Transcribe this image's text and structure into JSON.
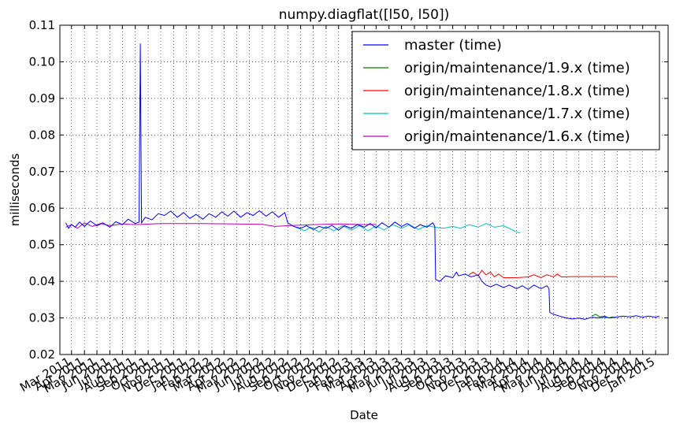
{
  "chart_data": {
    "type": "line",
    "title": "numpy.diagflat([l50, l50])",
    "xlabel": "Date",
    "ylabel": "milliseconds",
    "ylim": [
      0.02,
      0.11
    ],
    "xlim": [
      "2011-02-01",
      "2015-01-31"
    ],
    "grid": true,
    "legend_position": "top-right",
    "y_ticks": [
      "0.02",
      "0.03",
      "0.04",
      "0.05",
      "0.06",
      "0.07",
      "0.08",
      "0.09",
      "0.10",
      "0.11"
    ],
    "x_ticks": [
      {
        "date": "2011-03-01",
        "label": "Mar 2011"
      },
      {
        "date": "2011-04-01",
        "label": "Apr 2011"
      },
      {
        "date": "2011-05-01",
        "label": "May 2011"
      },
      {
        "date": "2011-06-01",
        "label": "Jun 2011"
      },
      {
        "date": "2011-07-01",
        "label": "Jul 2011"
      },
      {
        "date": "2011-08-01",
        "label": "Aug 2011"
      },
      {
        "date": "2011-09-01",
        "label": "Sep 2011"
      },
      {
        "date": "2011-10-01",
        "label": "Oct 2011"
      },
      {
        "date": "2011-11-01",
        "label": "Nov 2011"
      },
      {
        "date": "2011-12-01",
        "label": "Dec 2011"
      },
      {
        "date": "2012-01-01",
        "label": "Jan 2012"
      },
      {
        "date": "2012-02-01",
        "label": "Feb 2012"
      },
      {
        "date": "2012-03-01",
        "label": "Mar 2012"
      },
      {
        "date": "2012-04-01",
        "label": "Apr 2012"
      },
      {
        "date": "2012-05-01",
        "label": "May 2012"
      },
      {
        "date": "2012-06-01",
        "label": "Jun 2012"
      },
      {
        "date": "2012-07-01",
        "label": "Jul 2012"
      },
      {
        "date": "2012-08-01",
        "label": "Aug 2012"
      },
      {
        "date": "2012-09-01",
        "label": "Sep 2012"
      },
      {
        "date": "2012-10-01",
        "label": "Oct 2012"
      },
      {
        "date": "2012-11-01",
        "label": "Nov 2012"
      },
      {
        "date": "2012-12-01",
        "label": "Dec 2012"
      },
      {
        "date": "2013-01-01",
        "label": "Jan 2013"
      },
      {
        "date": "2013-02-01",
        "label": "Feb 2013"
      },
      {
        "date": "2013-03-01",
        "label": "Mar 2013"
      },
      {
        "date": "2013-04-01",
        "label": "Apr 2013"
      },
      {
        "date": "2013-05-01",
        "label": "May 2013"
      },
      {
        "date": "2013-06-01",
        "label": "Jun 2013"
      },
      {
        "date": "2013-07-01",
        "label": "Jul 2013"
      },
      {
        "date": "2013-08-01",
        "label": "Aug 2013"
      },
      {
        "date": "2013-09-01",
        "label": "Sep 2013"
      },
      {
        "date": "2013-10-01",
        "label": "Oct 2013"
      },
      {
        "date": "2013-11-01",
        "label": "Nov 2013"
      },
      {
        "date": "2013-12-01",
        "label": "Dec 2013"
      },
      {
        "date": "2014-01-01",
        "label": "Jan 2014"
      },
      {
        "date": "2014-02-01",
        "label": "Feb 2014"
      },
      {
        "date": "2014-03-01",
        "label": "Mar 2014"
      },
      {
        "date": "2014-04-01",
        "label": "Apr 2014"
      },
      {
        "date": "2014-05-01",
        "label": "May 2014"
      },
      {
        "date": "2014-06-01",
        "label": "Jun 2014"
      },
      {
        "date": "2014-07-01",
        "label": "Jul 2014"
      },
      {
        "date": "2014-08-01",
        "label": "Aug 2014"
      },
      {
        "date": "2014-09-01",
        "label": "Sep 2014"
      },
      {
        "date": "2014-10-01",
        "label": "Oct 2014"
      },
      {
        "date": "2014-11-01",
        "label": "Nov 2014"
      },
      {
        "date": "2014-12-01",
        "label": "Dec 2014"
      },
      {
        "date": "2015-01-01",
        "label": "Jan 2015"
      }
    ],
    "series": [
      {
        "name": "master (time)",
        "color": "#0000ff",
        "points": [
          [
            "2011-02-15",
            0.056
          ],
          [
            "2011-02-22",
            0.0545
          ],
          [
            "2011-03-01",
            0.0555
          ],
          [
            "2011-03-10",
            0.0548
          ],
          [
            "2011-03-20",
            0.0562
          ],
          [
            "2011-04-01",
            0.055
          ],
          [
            "2011-04-15",
            0.0565
          ],
          [
            "2011-05-01",
            0.0552
          ],
          [
            "2011-05-15",
            0.056
          ],
          [
            "2011-06-01",
            0.0548
          ],
          [
            "2011-06-15",
            0.0563
          ],
          [
            "2011-07-01",
            0.0555
          ],
          [
            "2011-07-15",
            0.057
          ],
          [
            "2011-08-01",
            0.0558
          ],
          [
            "2011-08-10",
            0.0562
          ],
          [
            "2011-08-13",
            0.105
          ],
          [
            "2011-08-16",
            0.056
          ],
          [
            "2011-08-25",
            0.0575
          ],
          [
            "2011-09-10",
            0.0568
          ],
          [
            "2011-09-25",
            0.0585
          ],
          [
            "2011-10-10",
            0.058
          ],
          [
            "2011-10-25",
            0.0592
          ],
          [
            "2011-11-10",
            0.0575
          ],
          [
            "2011-11-25",
            0.0588
          ],
          [
            "2011-12-10",
            0.0572
          ],
          [
            "2011-12-25",
            0.0583
          ],
          [
            "2012-01-10",
            0.057
          ],
          [
            "2012-01-25",
            0.0585
          ],
          [
            "2012-02-10",
            0.0575
          ],
          [
            "2012-02-25",
            0.059
          ],
          [
            "2012-03-10",
            0.0578
          ],
          [
            "2012-03-25",
            0.0592
          ],
          [
            "2012-04-10",
            0.0575
          ],
          [
            "2012-04-25",
            0.0588
          ],
          [
            "2012-05-10",
            0.058
          ],
          [
            "2012-05-25",
            0.0593
          ],
          [
            "2012-06-10",
            0.0578
          ],
          [
            "2012-06-25",
            0.059
          ],
          [
            "2012-07-10",
            0.0575
          ],
          [
            "2012-07-25",
            0.0588
          ],
          [
            "2012-08-01",
            0.056
          ],
          [
            "2012-08-15",
            0.055
          ],
          [
            "2012-09-01",
            0.0545
          ],
          [
            "2012-09-15",
            0.0552
          ],
          [
            "2012-10-01",
            0.0542
          ],
          [
            "2012-10-15",
            0.055
          ],
          [
            "2012-11-01",
            0.0545
          ],
          [
            "2012-11-15",
            0.0553
          ],
          [
            "2012-12-01",
            0.054
          ],
          [
            "2012-12-15",
            0.0552
          ],
          [
            "2013-01-01",
            0.0545
          ],
          [
            "2013-01-15",
            0.0555
          ],
          [
            "2013-02-01",
            0.0548
          ],
          [
            "2013-02-15",
            0.0558
          ],
          [
            "2013-03-01",
            0.0546
          ],
          [
            "2013-03-15",
            0.056
          ],
          [
            "2013-04-01",
            0.0548
          ],
          [
            "2013-04-15",
            0.0562
          ],
          [
            "2013-05-01",
            0.055
          ],
          [
            "2013-05-15",
            0.0558
          ],
          [
            "2013-06-01",
            0.0545
          ],
          [
            "2013-06-15",
            0.0555
          ],
          [
            "2013-07-01",
            0.0548
          ],
          [
            "2013-07-15",
            0.056
          ],
          [
            "2013-07-20",
            0.055
          ],
          [
            "2013-07-22",
            0.0405
          ],
          [
            "2013-08-01",
            0.04
          ],
          [
            "2013-08-15",
            0.0415
          ],
          [
            "2013-09-01",
            0.041
          ],
          [
            "2013-09-10",
            0.0425
          ],
          [
            "2013-09-15",
            0.0415
          ],
          [
            "2013-10-01",
            0.042
          ],
          [
            "2013-10-15",
            0.0412
          ],
          [
            "2013-11-01",
            0.0418
          ],
          [
            "2013-11-10",
            0.04
          ],
          [
            "2013-11-20",
            0.039
          ],
          [
            "2013-12-01",
            0.0385
          ],
          [
            "2013-12-15",
            0.0392
          ],
          [
            "2014-01-01",
            0.0383
          ],
          [
            "2014-01-15",
            0.039
          ],
          [
            "2014-02-01",
            0.038
          ],
          [
            "2014-02-15",
            0.0388
          ],
          [
            "2014-03-01",
            0.0378
          ],
          [
            "2014-03-15",
            0.039
          ],
          [
            "2014-04-01",
            0.038
          ],
          [
            "2014-04-15",
            0.0388
          ],
          [
            "2014-04-20",
            0.038
          ],
          [
            "2014-04-22",
            0.0315
          ],
          [
            "2014-05-01",
            0.031
          ],
          [
            "2014-05-15",
            0.0305
          ],
          [
            "2014-06-01",
            0.03
          ],
          [
            "2014-06-15",
            0.0297
          ],
          [
            "2014-07-01",
            0.03
          ],
          [
            "2014-07-15",
            0.0296
          ],
          [
            "2014-08-01",
            0.0302
          ],
          [
            "2014-08-15",
            0.03
          ],
          [
            "2014-09-01",
            0.0302
          ],
          [
            "2014-09-15",
            0.03
          ],
          [
            "2014-10-01",
            0.0303
          ],
          [
            "2014-10-15",
            0.0305
          ],
          [
            "2014-11-01",
            0.0303
          ],
          [
            "2014-11-15",
            0.0306
          ],
          [
            "2014-12-01",
            0.0302
          ],
          [
            "2014-12-15",
            0.0305
          ],
          [
            "2015-01-01",
            0.0302
          ],
          [
            "2015-01-10",
            0.0305
          ]
        ]
      },
      {
        "name": "origin/maintenance/1.9.x (time)",
        "color": "#008000",
        "points": [
          [
            "2014-08-01",
            0.0305
          ],
          [
            "2014-08-10",
            0.031
          ],
          [
            "2014-08-20",
            0.0303
          ],
          [
            "2014-09-01",
            0.0305
          ],
          [
            "2014-09-10",
            0.03
          ],
          [
            "2014-09-20",
            0.0303
          ],
          [
            "2014-09-25",
            0.03
          ]
        ]
      },
      {
        "name": "origin/maintenance/1.8.x (time)",
        "color": "#ff0000",
        "points": [
          [
            "2013-10-10",
            0.0418
          ],
          [
            "2013-10-20",
            0.0425
          ],
          [
            "2013-11-01",
            0.0415
          ],
          [
            "2013-11-10",
            0.043
          ],
          [
            "2013-11-20",
            0.0418
          ],
          [
            "2013-12-01",
            0.0425
          ],
          [
            "2013-12-10",
            0.0412
          ],
          [
            "2013-12-20",
            0.042
          ],
          [
            "2014-01-01",
            0.041
          ],
          [
            "2014-02-01",
            0.041
          ],
          [
            "2014-03-01",
            0.0412
          ],
          [
            "2014-03-15",
            0.0418
          ],
          [
            "2014-04-01",
            0.041
          ],
          [
            "2014-04-15",
            0.0418
          ],
          [
            "2014-05-01",
            0.0412
          ],
          [
            "2014-05-10",
            0.042
          ],
          [
            "2014-05-20",
            0.0412
          ],
          [
            "2014-06-15",
            0.0413
          ],
          [
            "2014-08-01",
            0.0413
          ],
          [
            "2014-10-01",
            0.0413
          ]
        ]
      },
      {
        "name": "origin/maintenance/1.7.x (time)",
        "color": "#00bfbf",
        "points": [
          [
            "2012-08-20",
            0.0548
          ],
          [
            "2012-09-10",
            0.0538
          ],
          [
            "2012-09-25",
            0.0548
          ],
          [
            "2012-10-15",
            0.0535
          ],
          [
            "2012-11-01",
            0.055
          ],
          [
            "2012-11-20",
            0.0538
          ],
          [
            "2012-12-10",
            0.0552
          ],
          [
            "2013-01-01",
            0.054
          ],
          [
            "2013-01-20",
            0.0552
          ],
          [
            "2013-02-10",
            0.0538
          ],
          [
            "2013-03-01",
            0.0552
          ],
          [
            "2013-03-20",
            0.054
          ],
          [
            "2013-04-10",
            0.0555
          ],
          [
            "2013-05-01",
            0.0545
          ],
          [
            "2013-05-20",
            0.0555
          ],
          [
            "2013-06-10",
            0.0542
          ],
          [
            "2013-07-01",
            0.0552
          ],
          [
            "2013-07-20",
            0.0548
          ],
          [
            "2013-08-10",
            0.0545
          ],
          [
            "2013-09-01",
            0.055
          ],
          [
            "2013-09-20",
            0.0545
          ],
          [
            "2013-10-10",
            0.0555
          ],
          [
            "2013-11-01",
            0.0548
          ],
          [
            "2013-11-20",
            0.0558
          ],
          [
            "2013-12-10",
            0.0548
          ],
          [
            "2014-01-01",
            0.0552
          ],
          [
            "2014-01-20",
            0.0542
          ],
          [
            "2014-02-01",
            0.0535
          ],
          [
            "2014-02-10",
            0.0532
          ]
        ]
      },
      {
        "name": "origin/maintenance/1.6.x (time)",
        "color": "#bf00bf",
        "points": [
          [
            "2011-02-15",
            0.0548
          ],
          [
            "2011-03-01",
            0.0555
          ],
          [
            "2011-03-15",
            0.0545
          ],
          [
            "2011-04-01",
            0.056
          ],
          [
            "2011-04-20",
            0.055
          ],
          [
            "2011-05-10",
            0.0558
          ],
          [
            "2011-06-01",
            0.0552
          ],
          [
            "2011-07-01",
            0.0557
          ],
          [
            "2011-08-01",
            0.0555
          ],
          [
            "2011-10-01",
            0.0558
          ],
          [
            "2012-01-01",
            0.0558
          ],
          [
            "2012-04-01",
            0.0557
          ],
          [
            "2012-06-01",
            0.0556
          ],
          [
            "2012-07-01",
            0.055
          ],
          [
            "2012-08-01",
            0.0552
          ],
          [
            "2012-10-01",
            0.0555
          ],
          [
            "2012-12-01",
            0.0557
          ],
          [
            "2013-02-01",
            0.0555
          ],
          [
            "2013-03-01",
            0.0556
          ]
        ]
      }
    ]
  }
}
